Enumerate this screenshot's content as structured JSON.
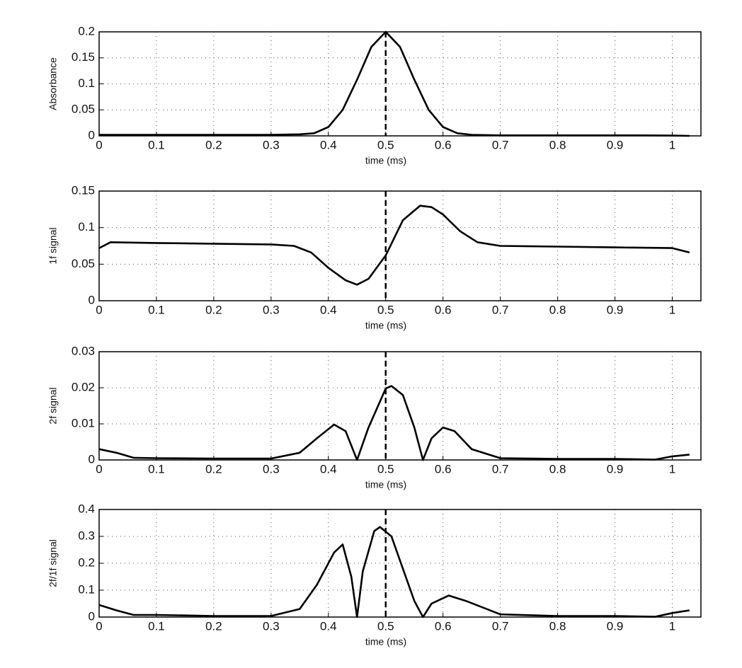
{
  "chart_data": [
    {
      "type": "line",
      "ylabel": "Absorbance",
      "xlabel": "time (ms)",
      "color": "#000000",
      "grid": true,
      "vline": 0.5,
      "xlim": [
        0,
        1.05
      ],
      "xticks": [
        0,
        0.1,
        0.2,
        0.3,
        0.4,
        0.5,
        0.6,
        0.7,
        0.8,
        0.9,
        1
      ],
      "ylim": [
        0,
        0.2
      ],
      "yticks": [
        0,
        0.05,
        0.1,
        0.15,
        0.2
      ],
      "x": [
        0,
        0.05,
        0.1,
        0.15,
        0.2,
        0.25,
        0.3,
        0.35,
        0.375,
        0.4,
        0.425,
        0.45,
        0.475,
        0.5,
        0.525,
        0.55,
        0.575,
        0.6,
        0.625,
        0.65,
        0.7,
        0.75,
        0.8,
        0.85,
        0.9,
        0.95,
        1.0,
        1.03
      ],
      "series": [
        {
          "values": [
            0.002,
            0.002,
            0.002,
            0.002,
            0.002,
            0.002,
            0.002,
            0.003,
            0.005,
            0.017,
            0.05,
            0.108,
            0.171,
            0.2,
            0.171,
            0.108,
            0.05,
            0.017,
            0.005,
            0.002,
            0.001,
            0.001,
            0.001,
            0.001,
            0.001,
            0.001,
            0.0005,
            0
          ]
        }
      ]
    },
    {
      "type": "line",
      "ylabel": "1f signal",
      "xlabel": "time (ms)",
      "color": "#000000",
      "grid": true,
      "vline": 0.5,
      "xlim": [
        0,
        1.05
      ],
      "xticks": [
        0,
        0.1,
        0.2,
        0.3,
        0.4,
        0.5,
        0.6,
        0.7,
        0.8,
        0.9,
        1
      ],
      "ylim": [
        0,
        0.15
      ],
      "yticks": [
        0,
        0.05,
        0.1,
        0.15
      ],
      "x": [
        0,
        0.02,
        0.1,
        0.2,
        0.3,
        0.34,
        0.37,
        0.4,
        0.43,
        0.45,
        0.47,
        0.5,
        0.53,
        0.56,
        0.58,
        0.6,
        0.63,
        0.66,
        0.7,
        0.8,
        0.9,
        1.0,
        1.03
      ],
      "series": [
        {
          "values": [
            0.072,
            0.08,
            0.079,
            0.078,
            0.077,
            0.075,
            0.066,
            0.045,
            0.028,
            0.022,
            0.03,
            0.062,
            0.11,
            0.13,
            0.128,
            0.118,
            0.095,
            0.08,
            0.075,
            0.074,
            0.073,
            0.072,
            0.066
          ]
        }
      ]
    },
    {
      "type": "line",
      "ylabel": "2f signal",
      "xlabel": "time (ms)",
      "color": "#000000",
      "grid": true,
      "vline": 0.5,
      "xlim": [
        0,
        1.05
      ],
      "xticks": [
        0,
        0.1,
        0.2,
        0.3,
        0.4,
        0.5,
        0.6,
        0.7,
        0.8,
        0.9,
        1
      ],
      "ylim": [
        0,
        0.03
      ],
      "yticks": [
        0,
        0.01,
        0.02,
        0.03
      ],
      "x": [
        0,
        0.03,
        0.06,
        0.1,
        0.2,
        0.3,
        0.35,
        0.38,
        0.41,
        0.43,
        0.45,
        0.47,
        0.5,
        0.51,
        0.53,
        0.55,
        0.565,
        0.58,
        0.6,
        0.62,
        0.65,
        0.7,
        0.8,
        0.9,
        0.97,
        1.0,
        1.03
      ],
      "series": [
        {
          "values": [
            0.003,
            0.002,
            0.0006,
            0.0005,
            0.0004,
            0.0004,
            0.002,
            0.006,
            0.0098,
            0.008,
            0,
            0.009,
            0.0198,
            0.0205,
            0.018,
            0.009,
            0,
            0.006,
            0.009,
            0.008,
            0.003,
            0.0005,
            0.0003,
            0.0003,
            0.0001,
            0.001,
            0.0015
          ]
        }
      ]
    },
    {
      "type": "line",
      "ylabel": "2f/1f signal",
      "xlabel": "time (ms)",
      "color": "#000000",
      "grid": true,
      "vline": 0.5,
      "xlim": [
        0,
        1.05
      ],
      "xticks": [
        0,
        0.1,
        0.2,
        0.3,
        0.4,
        0.5,
        0.6,
        0.7,
        0.8,
        0.9,
        1
      ],
      "ylim": [
        0,
        0.4
      ],
      "yticks": [
        0,
        0.1,
        0.2,
        0.3,
        0.4
      ],
      "x": [
        0,
        0.03,
        0.06,
        0.1,
        0.2,
        0.3,
        0.35,
        0.38,
        0.41,
        0.425,
        0.44,
        0.45,
        0.46,
        0.48,
        0.49,
        0.51,
        0.53,
        0.55,
        0.565,
        0.58,
        0.61,
        0.64,
        0.7,
        0.8,
        0.9,
        0.97,
        1.0,
        1.03
      ],
      "series": [
        {
          "values": [
            0.045,
            0.025,
            0.008,
            0.008,
            0.004,
            0.004,
            0.03,
            0.12,
            0.24,
            0.27,
            0.15,
            0,
            0.17,
            0.32,
            0.335,
            0.3,
            0.18,
            0.06,
            0,
            0.05,
            0.08,
            0.06,
            0.01,
            0.004,
            0.004,
            0.001,
            0.015,
            0.025
          ]
        }
      ]
    }
  ]
}
